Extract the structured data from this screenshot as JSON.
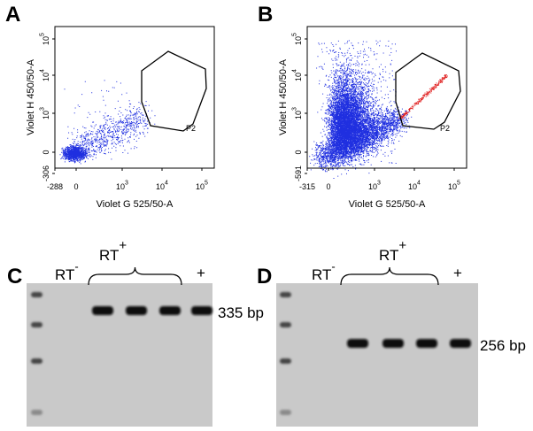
{
  "flow_panels": [
    {
      "label": "A",
      "y_axis_label": "Violet H 450/50-A",
      "x_axis_label": "Violet G 525/50-A",
      "y_ticks": [
        "-306",
        "0",
        {
          "base": "10",
          "exp": "3"
        },
        {
          "base": "10",
          "exp": "4"
        },
        {
          "base": "10",
          "exp": "5"
        }
      ],
      "x_ticks": [
        "-288",
        "0",
        {
          "base": "10",
          "exp": "3"
        },
        {
          "base": "10",
          "exp": "4"
        },
        {
          "base": "10",
          "exp": "5"
        }
      ],
      "gate_label": "P2"
    },
    {
      "label": "B",
      "y_axis_label": "Violet H 450/50-A",
      "x_axis_label": "Violet G 525/50-A",
      "y_ticks": [
        "-591",
        "0",
        {
          "base": "10",
          "exp": "3"
        },
        {
          "base": "10",
          "exp": "4"
        },
        {
          "base": "10",
          "exp": "5"
        }
      ],
      "x_ticks": [
        "-315",
        "0",
        {
          "base": "10",
          "exp": "3"
        },
        {
          "base": "10",
          "exp": "4"
        },
        {
          "base": "10",
          "exp": "5"
        }
      ],
      "gate_label": "P2"
    }
  ],
  "gels": [
    {
      "label": "C",
      "negative_label": {
        "text": "RT",
        "sup": "-"
      },
      "positive_label": {
        "text": "RT",
        "sup": "+"
      },
      "control_label": "+",
      "band_size": "335 bp"
    },
    {
      "label": "D",
      "negative_label": {
        "text": "RT",
        "sup": "-"
      },
      "positive_label": {
        "text": "RT",
        "sup": "+"
      },
      "control_label": "+",
      "band_size": "256 bp"
    }
  ]
}
